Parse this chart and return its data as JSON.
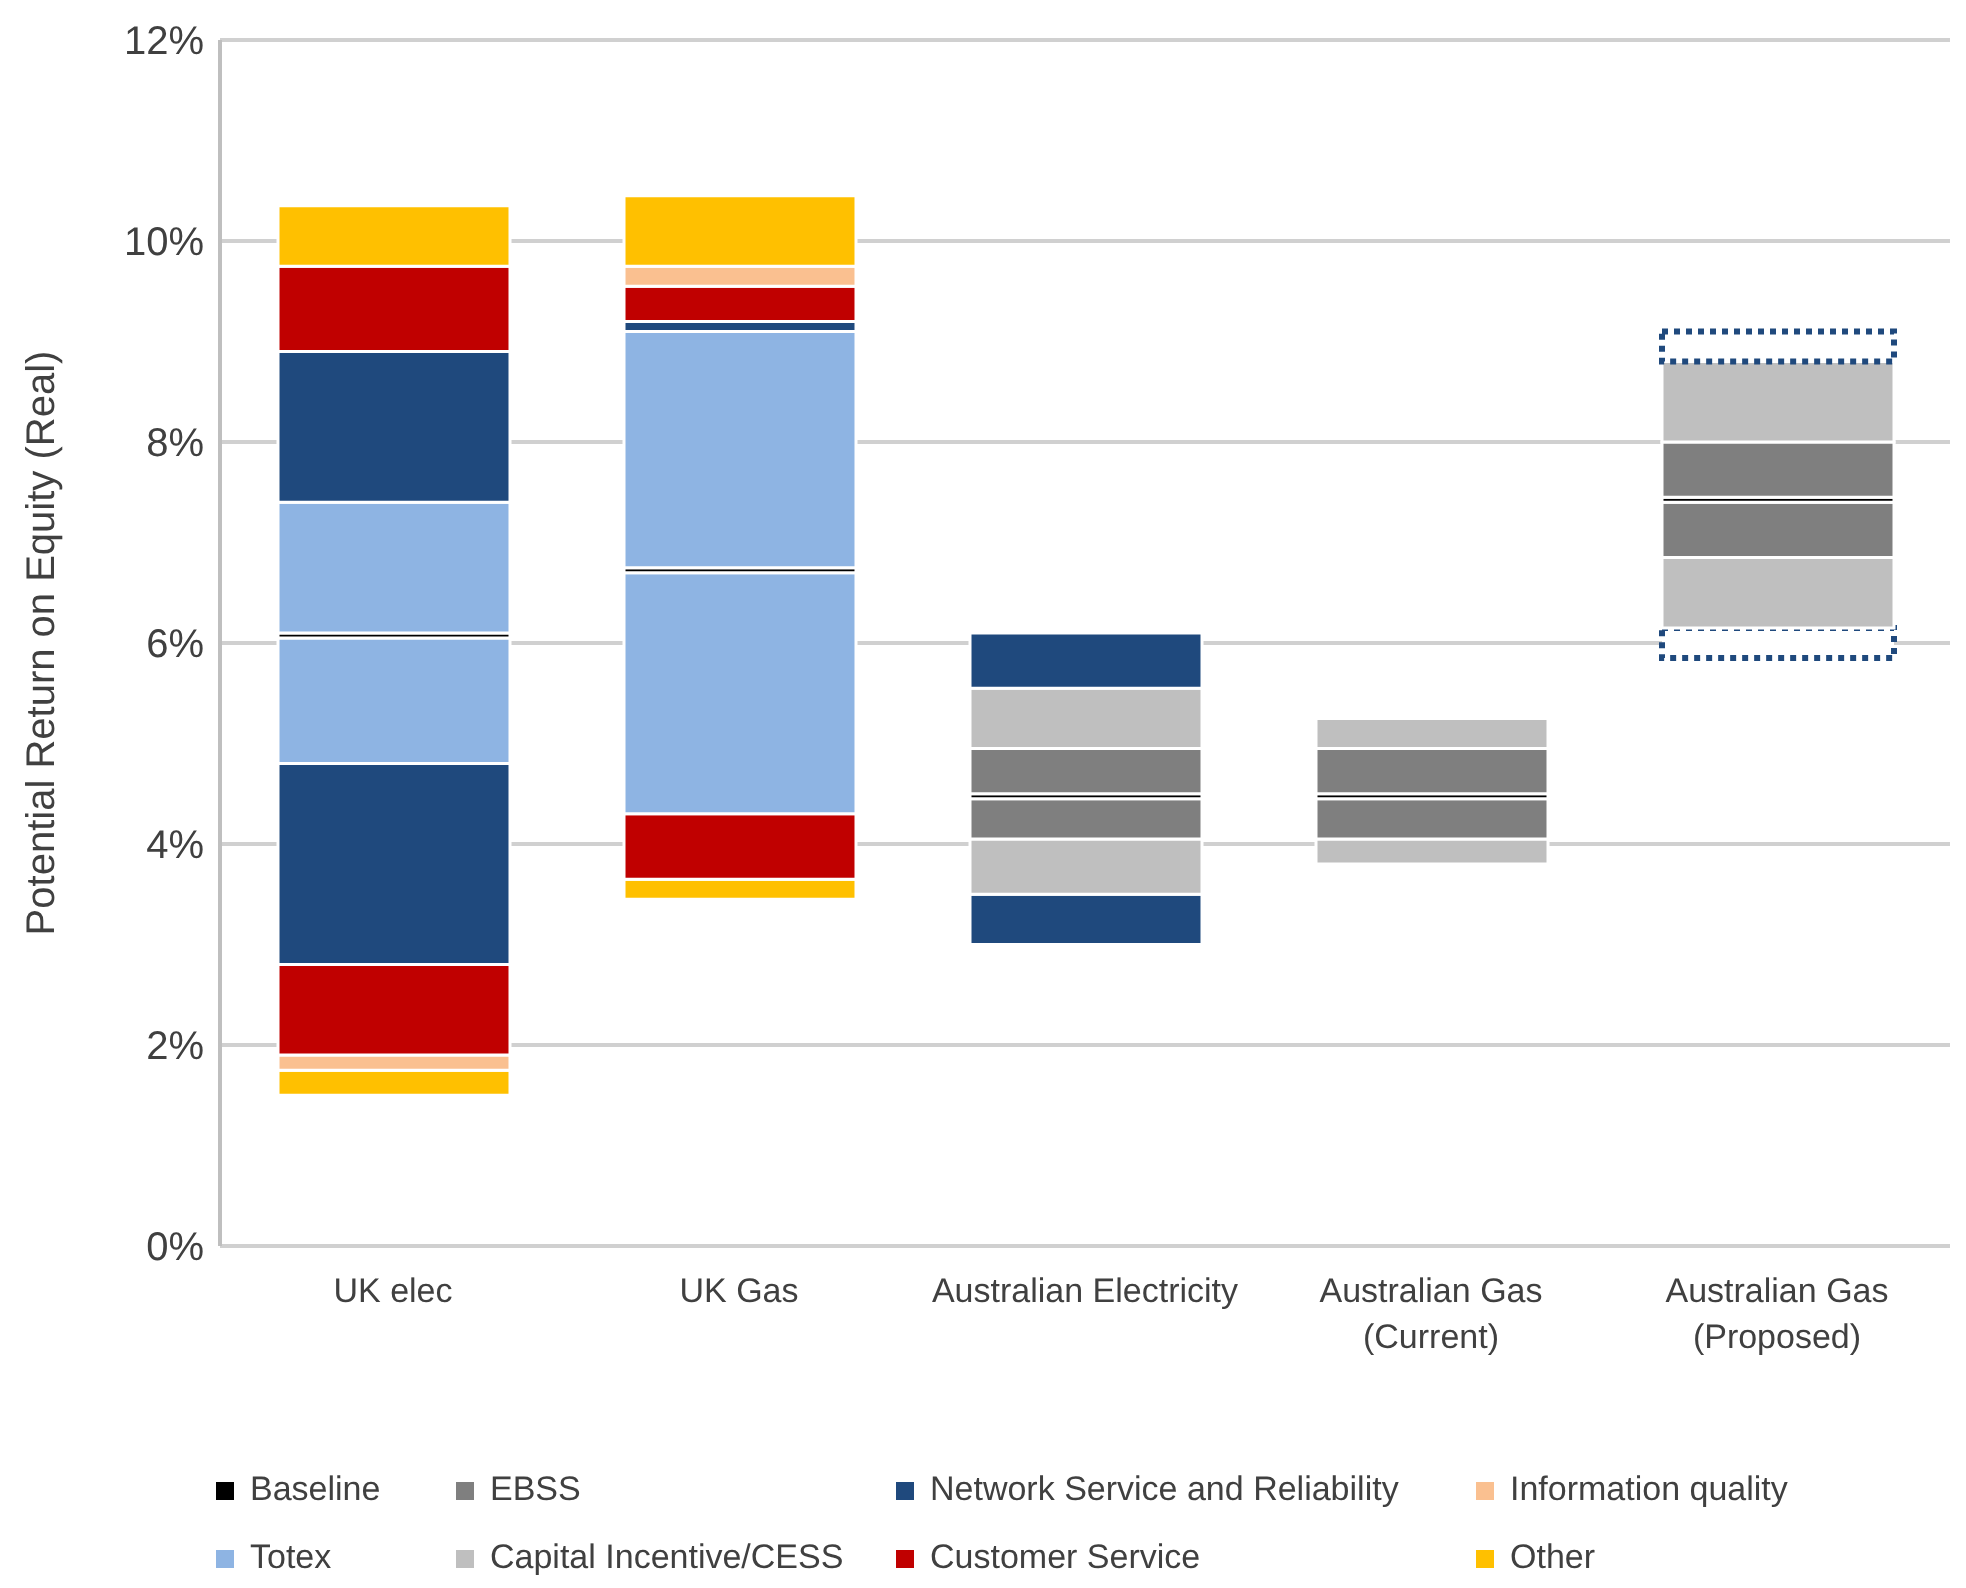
{
  "chart_data": {
    "type": "bar",
    "ylabel": "Potential Return on Equity (Real)",
    "categories": [
      "UK elec",
      "UK Gas",
      "Australian Electricity",
      "Australian Gas\n(Current)",
      "Australian Gas\n(Proposed)"
    ],
    "ylim": [
      0,
      12
    ],
    "yticks": [
      {
        "value": 0,
        "label": "0%"
      },
      {
        "value": 2,
        "label": "2%"
      },
      {
        "value": 4,
        "label": "4%"
      },
      {
        "value": 6,
        "label": "6%"
      },
      {
        "value": 8,
        "label": "8%"
      },
      {
        "value": 10,
        "label": "10%"
      },
      {
        "value": 12,
        "label": "12%"
      }
    ],
    "grid": "y",
    "legend": "bottom",
    "series": [
      {
        "color": "#ffc000",
        "base": [
          1.5,
          3.45,
          null,
          null,
          null
        ],
        "values": [
          0.25,
          0.2,
          null,
          null,
          null
        ]
      },
      {
        "color": "#fac090",
        "base": [
          1.75,
          null,
          null,
          null,
          null
        ],
        "values": [
          0.15,
          null,
          null,
          null,
          null
        ]
      },
      {
        "color": "#c00000",
        "base": [
          1.9,
          3.65,
          null,
          null,
          null
        ],
        "values": [
          0.9,
          0.65,
          null,
          null,
          null
        ]
      },
      {
        "color": "#1f497d",
        "colors": [
          "#1f497d",
          "#1f497d",
          "#1f497d",
          "#1f497d",
          "#ffffff"
        ],
        "base": [
          2.8,
          null,
          3.0,
          null,
          5.85
        ],
        "values": [
          2.0,
          null,
          0.5,
          null,
          0.3
        ]
      },
      {
        "color": "#bfbfbf",
        "base": [
          null,
          null,
          3.5,
          3.8,
          6.15
        ],
        "values": [
          null,
          null,
          0.55,
          0.25,
          0.7
        ]
      },
      {
        "color": "#7f7f7f",
        "base": [
          null,
          null,
          4.05,
          4.05,
          6.85
        ],
        "values": [
          null,
          null,
          0.4,
          0.4,
          0.55
        ]
      },
      {
        "color": "#8eb4e3",
        "base": [
          4.8,
          4.3,
          null,
          null,
          null
        ],
        "values": [
          1.25,
          2.4,
          null,
          null,
          null
        ]
      },
      {
        "name": "Baseline",
        "color": "#000000",
        "base": [
          6.05,
          6.7,
          4.45,
          4.45,
          7.4
        ],
        "values": [
          0.05,
          0.05,
          0.05,
          0.05,
          0.05
        ]
      },
      {
        "name": "Totex",
        "color": "#8eb4e3",
        "base": [
          6.1,
          6.75,
          null,
          null,
          null
        ],
        "values": [
          1.3,
          2.35,
          null,
          null,
          null
        ]
      },
      {
        "name": "EBSS",
        "color": "#7f7f7f",
        "base": [
          null,
          null,
          4.5,
          4.5,
          7.45
        ],
        "values": [
          null,
          null,
          0.45,
          0.45,
          0.55
        ]
      },
      {
        "name": "Capital Incentive/CESS",
        "color": "#bfbfbf",
        "base": [
          null,
          null,
          4.95,
          4.95,
          8.0
        ],
        "values": [
          null,
          null,
          0.6,
          0.3,
          0.8
        ]
      },
      {
        "name": "Network Service and Reliability",
        "color": "#1f497d",
        "colors": [
          "#1f497d",
          "#1f497d",
          "#1f497d",
          "#1f497d",
          "#ffffff"
        ],
        "base": [
          7.4,
          9.1,
          5.55,
          null,
          8.8
        ],
        "values": [
          1.5,
          0.1,
          0.55,
          null,
          0.3
        ]
      },
      {
        "name": "Customer Service",
        "color": "#c00000",
        "base": [
          8.9,
          9.2,
          null,
          null,
          null
        ],
        "values": [
          0.85,
          0.35,
          null,
          null,
          null
        ]
      },
      {
        "name": "Information quality",
        "color": "#fac090",
        "base": [
          null,
          9.55,
          null,
          null,
          null
        ],
        "values": [
          null,
          0.2,
          null,
          null,
          null
        ]
      },
      {
        "name": "Other",
        "color": "#ffc000",
        "base": [
          9.75,
          9.75,
          null,
          null,
          null
        ],
        "values": [
          0.6,
          0.7,
          null,
          null,
          null
        ]
      }
    ]
  }
}
